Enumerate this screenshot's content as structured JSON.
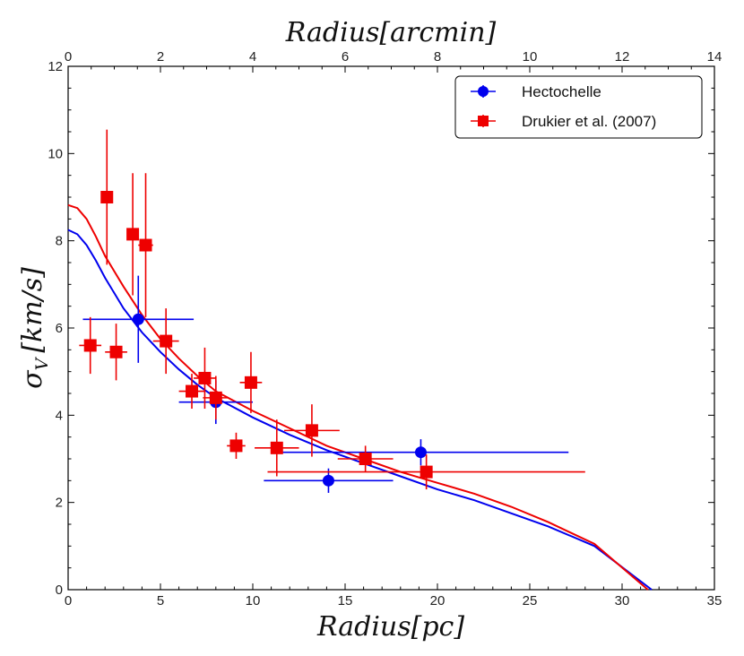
{
  "chart_data": {
    "type": "scatter",
    "xlabel": "Radius[pc]",
    "ylabel": "σ_V [km/s]",
    "ylabel_main": "σ",
    "ylabel_sub": "V",
    "ylabel_units": "[km/s]",
    "top_xlabel": "Radius[arcmin]",
    "xlim": [
      0,
      35
    ],
    "ylim": [
      0,
      12
    ],
    "top_xlim": [
      0,
      14
    ],
    "x_ticks": [
      "0",
      "5",
      "10",
      "15",
      "20",
      "25",
      "30",
      "35"
    ],
    "y_ticks": [
      "0",
      "2",
      "4",
      "6",
      "8",
      "10",
      "12"
    ],
    "top_ticks": [
      "0",
      "2",
      "4",
      "6",
      "8",
      "10",
      "12",
      "14"
    ],
    "legend_position": "top-right",
    "series": [
      {
        "name": "Hectochelle",
        "color": "#0000ee",
        "marker": "circle",
        "points": [
          {
            "x": 3.8,
            "y": 6.2,
            "xerr": 3.0,
            "yerr": 1.0
          },
          {
            "x": 8.0,
            "y": 4.3,
            "xerr": 2.0,
            "yerr": 0.5
          },
          {
            "x": 14.1,
            "y": 2.5,
            "xerr": 3.5,
            "yerr": 0.28
          },
          {
            "x": 19.1,
            "y": 3.15,
            "xerr": 8.0,
            "yerr": 0.3
          }
        ]
      },
      {
        "name": "Drukier et al. (2007)",
        "color": "#ee0000",
        "marker": "square",
        "points": [
          {
            "x": 1.2,
            "y": 5.6,
            "xerr": 0.6,
            "yerr": 0.65
          },
          {
            "x": 2.1,
            "y": 9.0,
            "xerr": 0.0,
            "yerr": 1.55
          },
          {
            "x": 2.6,
            "y": 5.45,
            "xerr": 0.6,
            "yerr": 0.65
          },
          {
            "x": 3.5,
            "y": 8.15,
            "xerr": 0.0,
            "yerr": 1.4
          },
          {
            "x": 4.2,
            "y": 7.9,
            "xerr": 0.4,
            "yerr": 1.65
          },
          {
            "x": 5.3,
            "y": 5.7,
            "xerr": 0.7,
            "yerr": 0.75
          },
          {
            "x": 6.7,
            "y": 4.55,
            "xerr": 0.7,
            "yerr": 0.4
          },
          {
            "x": 7.4,
            "y": 4.85,
            "xerr": 0.6,
            "yerr": 0.7
          },
          {
            "x": 8.0,
            "y": 4.4,
            "xerr": 0.7,
            "yerr": 0.5
          },
          {
            "x": 9.1,
            "y": 3.3,
            "xerr": 0.5,
            "yerr": 0.3
          },
          {
            "x": 9.9,
            "y": 4.75,
            "xerr": 0.6,
            "yerr": 0.7
          },
          {
            "x": 11.3,
            "y": 3.25,
            "xerr": 1.2,
            "yerr": 0.65
          },
          {
            "x": 13.2,
            "y": 3.65,
            "xerr": 1.5,
            "yerr": 0.6
          },
          {
            "x": 16.1,
            "y": 3.0,
            "xerr": 1.5,
            "yerr": 0.3
          },
          {
            "x": 19.4,
            "y": 2.7,
            "xerr": 8.6,
            "yerr": 0.4
          }
        ]
      }
    ],
    "model_curves": [
      {
        "name": "blue-model",
        "color": "#0000ee",
        "x": [
          0,
          0.5,
          1.0,
          1.5,
          2,
          3,
          4,
          5,
          6,
          7,
          8,
          10,
          12,
          14,
          16,
          18,
          20,
          22,
          24,
          26,
          28.5,
          31.6
        ],
        "y": [
          8.25,
          8.15,
          7.9,
          7.55,
          7.15,
          6.45,
          5.9,
          5.45,
          5.05,
          4.7,
          4.4,
          3.95,
          3.55,
          3.2,
          2.9,
          2.6,
          2.3,
          2.05,
          1.75,
          1.45,
          1.0,
          0.0
        ]
      },
      {
        "name": "red-model",
        "color": "#ee0000",
        "x": [
          0,
          0.5,
          1.0,
          1.5,
          2,
          3,
          4,
          5,
          6,
          7,
          8,
          10,
          12,
          14,
          16,
          18,
          20,
          22,
          24,
          26,
          28.5,
          31.4
        ],
        "y": [
          8.82,
          8.75,
          8.5,
          8.1,
          7.65,
          6.95,
          6.3,
          5.75,
          5.3,
          4.9,
          4.55,
          4.1,
          3.7,
          3.3,
          3.0,
          2.7,
          2.45,
          2.2,
          1.9,
          1.55,
          1.05,
          0.0
        ]
      }
    ]
  }
}
